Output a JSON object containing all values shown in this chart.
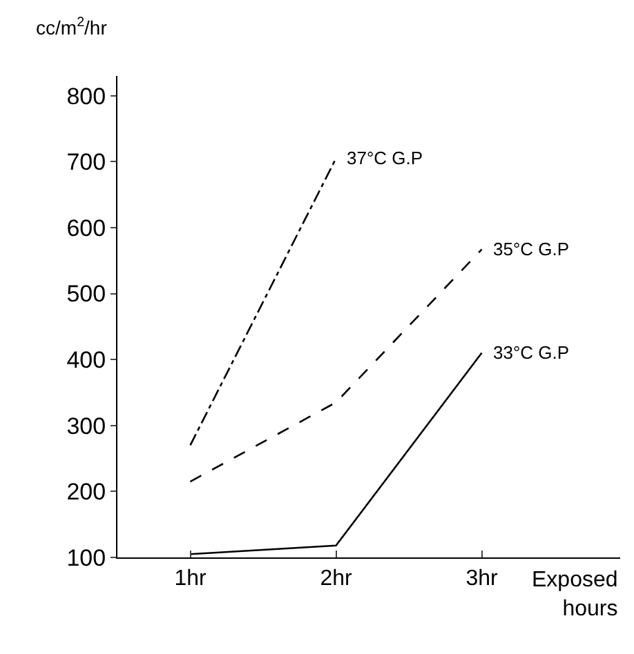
{
  "chart_data": {
    "type": "line",
    "ylabel": "cc/m$^{2}$/hr",
    "xlabel": "Exposed hours",
    "categories": [
      "1hr",
      "2hr",
      "3hr"
    ],
    "series": [
      {
        "name": "37°C G.P",
        "color": "#000000",
        "line_style": "dashdot",
        "values": [
          270,
          705,
          null
        ]
      },
      {
        "name": "35°C G.P",
        "color": "#000000",
        "line_style": "dashed",
        "values": [
          215,
          335,
          567
        ]
      },
      {
        "name": "33°C G.P",
        "color": "#000000",
        "line_style": "solid",
        "values": [
          105,
          118,
          410
        ]
      }
    ],
    "ylim": [
      100,
      830
    ],
    "yticks": [
      100,
      200,
      300,
      400,
      500,
      600,
      700,
      800
    ],
    "marker": "none"
  }
}
